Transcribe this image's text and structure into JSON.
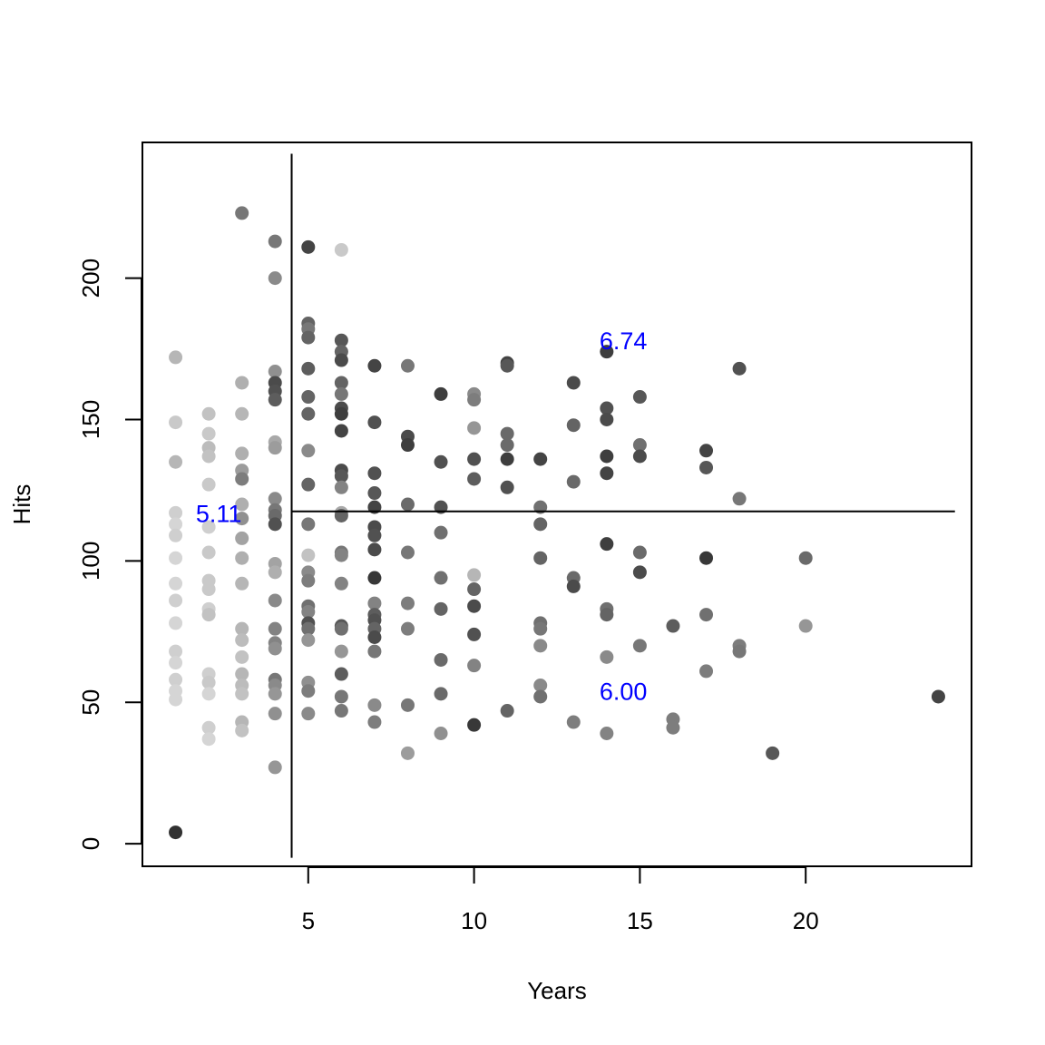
{
  "chart_data": {
    "type": "scatter",
    "title": "",
    "xlabel": "Years",
    "ylabel": "Hits",
    "xlim": [
      0,
      25
    ],
    "ylim": [
      -8,
      248
    ],
    "x_ticks": [
      5,
      10,
      15,
      20
    ],
    "y_ticks": [
      0,
      50,
      100,
      150,
      200
    ],
    "grid": false,
    "legend": "none",
    "marker_color_scale": {
      "low": "#e8e8e8",
      "high": "#2b2b2b",
      "range": [
        4.5,
        7.5
      ]
    },
    "split_lines": {
      "vertical": {
        "x": 4.5,
        "y_from": -5,
        "y_to": 244
      },
      "horizontal": {
        "y": 117.5,
        "x_from": 4.5,
        "x_to": 24.5
      }
    },
    "region_labels": [
      {
        "text": "5.11",
        "x": 2.3,
        "y": 117,
        "color": "#0000ff"
      },
      {
        "text": "6.74",
        "x": 14.5,
        "y": 178,
        "color": "#0000ff"
      },
      {
        "text": "6.00",
        "x": 14.5,
        "y": 54,
        "color": "#0000ff"
      }
    ],
    "points": [
      {
        "x": 1,
        "y": 172,
        "z": 5.3
      },
      {
        "x": 1,
        "y": 149,
        "z": 5.0
      },
      {
        "x": 1,
        "y": 135,
        "z": 5.3
      },
      {
        "x": 1,
        "y": 117,
        "z": 4.9
      },
      {
        "x": 1,
        "y": 113,
        "z": 4.8
      },
      {
        "x": 1,
        "y": 109,
        "z": 4.9
      },
      {
        "x": 1,
        "y": 101,
        "z": 4.8
      },
      {
        "x": 1,
        "y": 92,
        "z": 4.8
      },
      {
        "x": 1,
        "y": 86,
        "z": 4.9
      },
      {
        "x": 1,
        "y": 78,
        "z": 4.8
      },
      {
        "x": 1,
        "y": 68,
        "z": 4.9
      },
      {
        "x": 1,
        "y": 64,
        "z": 4.8
      },
      {
        "x": 1,
        "y": 58,
        "z": 4.9
      },
      {
        "x": 1,
        "y": 54,
        "z": 4.8
      },
      {
        "x": 1,
        "y": 51,
        "z": 4.8
      },
      {
        "x": 1,
        "y": 4,
        "z": 7.4
      },
      {
        "x": 2,
        "y": 152,
        "z": 5.1
      },
      {
        "x": 2,
        "y": 145,
        "z": 5.0
      },
      {
        "x": 2,
        "y": 140,
        "z": 5.2
      },
      {
        "x": 2,
        "y": 137,
        "z": 5.1
      },
      {
        "x": 2,
        "y": 127,
        "z": 5.0
      },
      {
        "x": 2,
        "y": 112,
        "z": 4.9
      },
      {
        "x": 2,
        "y": 103,
        "z": 5.0
      },
      {
        "x": 2,
        "y": 93,
        "z": 5.0
      },
      {
        "x": 2,
        "y": 90,
        "z": 5.0
      },
      {
        "x": 2,
        "y": 83,
        "z": 4.9
      },
      {
        "x": 2,
        "y": 81,
        "z": 5.1
      },
      {
        "x": 2,
        "y": 60,
        "z": 4.9
      },
      {
        "x": 2,
        "y": 57,
        "z": 5.0
      },
      {
        "x": 2,
        "y": 53,
        "z": 4.8
      },
      {
        "x": 2,
        "y": 41,
        "z": 4.9
      },
      {
        "x": 2,
        "y": 37,
        "z": 4.8
      },
      {
        "x": 3,
        "y": 223,
        "z": 6.3
      },
      {
        "x": 3,
        "y": 163,
        "z": 5.4
      },
      {
        "x": 3,
        "y": 152,
        "z": 5.3
      },
      {
        "x": 3,
        "y": 138,
        "z": 5.4
      },
      {
        "x": 3,
        "y": 132,
        "z": 5.7
      },
      {
        "x": 3,
        "y": 129,
        "z": 6.2
      },
      {
        "x": 3,
        "y": 120,
        "z": 5.4
      },
      {
        "x": 3,
        "y": 115,
        "z": 5.9
      },
      {
        "x": 3,
        "y": 108,
        "z": 5.6
      },
      {
        "x": 3,
        "y": 101,
        "z": 5.4
      },
      {
        "x": 3,
        "y": 92,
        "z": 5.3
      },
      {
        "x": 3,
        "y": 76,
        "z": 5.3
      },
      {
        "x": 3,
        "y": 72,
        "z": 5.2
      },
      {
        "x": 3,
        "y": 66,
        "z": 5.1
      },
      {
        "x": 3,
        "y": 60,
        "z": 5.3
      },
      {
        "x": 3,
        "y": 56,
        "z": 5.2
      },
      {
        "x": 3,
        "y": 53,
        "z": 5.1
      },
      {
        "x": 3,
        "y": 43,
        "z": 5.3
      },
      {
        "x": 3,
        "y": 40,
        "z": 5.1
      },
      {
        "x": 4,
        "y": 213,
        "z": 6.3
      },
      {
        "x": 4,
        "y": 200,
        "z": 6.0
      },
      {
        "x": 4,
        "y": 167,
        "z": 5.9
      },
      {
        "x": 4,
        "y": 163,
        "z": 7.0
      },
      {
        "x": 4,
        "y": 160,
        "z": 6.9
      },
      {
        "x": 4,
        "y": 157,
        "z": 6.7
      },
      {
        "x": 4,
        "y": 142,
        "z": 5.5
      },
      {
        "x": 4,
        "y": 140,
        "z": 5.7
      },
      {
        "x": 4,
        "y": 122,
        "z": 6.0
      },
      {
        "x": 4,
        "y": 118,
        "z": 6.3
      },
      {
        "x": 4,
        "y": 116,
        "z": 6.5
      },
      {
        "x": 4,
        "y": 113,
        "z": 6.9
      },
      {
        "x": 4,
        "y": 99,
        "z": 5.6
      },
      {
        "x": 4,
        "y": 96,
        "z": 5.4
      },
      {
        "x": 4,
        "y": 86,
        "z": 6.0
      },
      {
        "x": 4,
        "y": 76,
        "z": 6.1
      },
      {
        "x": 4,
        "y": 71,
        "z": 6.1
      },
      {
        "x": 4,
        "y": 69,
        "z": 5.9
      },
      {
        "x": 4,
        "y": 58,
        "z": 6.3
      },
      {
        "x": 4,
        "y": 56,
        "z": 6.0
      },
      {
        "x": 4,
        "y": 53,
        "z": 5.8
      },
      {
        "x": 4,
        "y": 46,
        "z": 5.9
      },
      {
        "x": 4,
        "y": 27,
        "z": 5.8
      },
      {
        "x": 5,
        "y": 211,
        "z": 7.1
      },
      {
        "x": 5,
        "y": 184,
        "z": 6.6
      },
      {
        "x": 5,
        "y": 182,
        "z": 6.3
      },
      {
        "x": 5,
        "y": 179,
        "z": 6.6
      },
      {
        "x": 5,
        "y": 168,
        "z": 6.7
      },
      {
        "x": 5,
        "y": 158,
        "z": 6.6
      },
      {
        "x": 5,
        "y": 152,
        "z": 6.6
      },
      {
        "x": 5,
        "y": 139,
        "z": 6.0
      },
      {
        "x": 5,
        "y": 127,
        "z": 6.6
      },
      {
        "x": 5,
        "y": 113,
        "z": 6.3
      },
      {
        "x": 5,
        "y": 102,
        "z": 5.1
      },
      {
        "x": 5,
        "y": 96,
        "z": 6.0
      },
      {
        "x": 5,
        "y": 93,
        "z": 6.2
      },
      {
        "x": 5,
        "y": 84,
        "z": 6.4
      },
      {
        "x": 5,
        "y": 82,
        "z": 6.1
      },
      {
        "x": 5,
        "y": 78,
        "z": 6.9
      },
      {
        "x": 5,
        "y": 76,
        "z": 6.4
      },
      {
        "x": 5,
        "y": 72,
        "z": 5.8
      },
      {
        "x": 5,
        "y": 57,
        "z": 5.9
      },
      {
        "x": 5,
        "y": 54,
        "z": 6.2
      },
      {
        "x": 5,
        "y": 46,
        "z": 6.0
      },
      {
        "x": 6,
        "y": 210,
        "z": 5.0
      },
      {
        "x": 6,
        "y": 178,
        "z": 6.8
      },
      {
        "x": 6,
        "y": 174,
        "z": 6.6
      },
      {
        "x": 6,
        "y": 171,
        "z": 7.0
      },
      {
        "x": 6,
        "y": 163,
        "z": 6.6
      },
      {
        "x": 6,
        "y": 159,
        "z": 6.3
      },
      {
        "x": 6,
        "y": 154,
        "z": 7.0
      },
      {
        "x": 6,
        "y": 152,
        "z": 7.2
      },
      {
        "x": 6,
        "y": 146,
        "z": 7.1
      },
      {
        "x": 6,
        "y": 132,
        "z": 7.0
      },
      {
        "x": 6,
        "y": 130,
        "z": 6.8
      },
      {
        "x": 6,
        "y": 126,
        "z": 6.1
      },
      {
        "x": 6,
        "y": 117,
        "z": 5.5
      },
      {
        "x": 6,
        "y": 116,
        "z": 6.6
      },
      {
        "x": 6,
        "y": 103,
        "z": 6.3
      },
      {
        "x": 6,
        "y": 102,
        "z": 6.1
      },
      {
        "x": 6,
        "y": 92,
        "z": 6.1
      },
      {
        "x": 6,
        "y": 77,
        "z": 6.8
      },
      {
        "x": 6,
        "y": 76,
        "z": 6.4
      },
      {
        "x": 6,
        "y": 68,
        "z": 5.8
      },
      {
        "x": 6,
        "y": 60,
        "z": 6.7
      },
      {
        "x": 6,
        "y": 52,
        "z": 6.3
      },
      {
        "x": 6,
        "y": 47,
        "z": 6.3
      },
      {
        "x": 7,
        "y": 169,
        "z": 7.1
      },
      {
        "x": 7,
        "y": 149,
        "z": 6.9
      },
      {
        "x": 7,
        "y": 131,
        "z": 6.9
      },
      {
        "x": 7,
        "y": 124,
        "z": 6.8
      },
      {
        "x": 7,
        "y": 119,
        "z": 7.1
      },
      {
        "x": 7,
        "y": 112,
        "z": 7.0
      },
      {
        "x": 7,
        "y": 109,
        "z": 6.9
      },
      {
        "x": 7,
        "y": 104,
        "z": 7.0
      },
      {
        "x": 7,
        "y": 94,
        "z": 7.3
      },
      {
        "x": 7,
        "y": 85,
        "z": 6.1
      },
      {
        "x": 7,
        "y": 81,
        "z": 6.7
      },
      {
        "x": 7,
        "y": 79,
        "z": 6.9
      },
      {
        "x": 7,
        "y": 76,
        "z": 6.6
      },
      {
        "x": 7,
        "y": 73,
        "z": 7.0
      },
      {
        "x": 7,
        "y": 68,
        "z": 6.3
      },
      {
        "x": 7,
        "y": 49,
        "z": 6.0
      },
      {
        "x": 7,
        "y": 43,
        "z": 6.2
      },
      {
        "x": 8,
        "y": 169,
        "z": 6.3
      },
      {
        "x": 8,
        "y": 144,
        "z": 7.0
      },
      {
        "x": 8,
        "y": 141,
        "z": 7.2
      },
      {
        "x": 8,
        "y": 120,
        "z": 6.5
      },
      {
        "x": 8,
        "y": 103,
        "z": 6.3
      },
      {
        "x": 8,
        "y": 85,
        "z": 6.2
      },
      {
        "x": 8,
        "y": 76,
        "z": 6.2
      },
      {
        "x": 8,
        "y": 49,
        "z": 6.3
      },
      {
        "x": 8,
        "y": 32,
        "z": 5.7
      },
      {
        "x": 9,
        "y": 159,
        "z": 7.2
      },
      {
        "x": 9,
        "y": 135,
        "z": 6.9
      },
      {
        "x": 9,
        "y": 119,
        "z": 6.9
      },
      {
        "x": 9,
        "y": 110,
        "z": 6.4
      },
      {
        "x": 9,
        "y": 94,
        "z": 6.4
      },
      {
        "x": 9,
        "y": 83,
        "z": 6.6
      },
      {
        "x": 9,
        "y": 65,
        "z": 6.5
      },
      {
        "x": 9,
        "y": 53,
        "z": 6.5
      },
      {
        "x": 9,
        "y": 39,
        "z": 5.9
      },
      {
        "x": 10,
        "y": 159,
        "z": 6.0
      },
      {
        "x": 10,
        "y": 157,
        "z": 6.2
      },
      {
        "x": 10,
        "y": 147,
        "z": 5.8
      },
      {
        "x": 10,
        "y": 136,
        "z": 6.9
      },
      {
        "x": 10,
        "y": 129,
        "z": 6.7
      },
      {
        "x": 10,
        "y": 95,
        "z": 5.3
      },
      {
        "x": 10,
        "y": 90,
        "z": 6.6
      },
      {
        "x": 10,
        "y": 84,
        "z": 7.0
      },
      {
        "x": 10,
        "y": 74,
        "z": 6.9
      },
      {
        "x": 10,
        "y": 63,
        "z": 6.1
      },
      {
        "x": 10,
        "y": 42,
        "z": 7.3
      },
      {
        "x": 11,
        "y": 170,
        "z": 7.1
      },
      {
        "x": 11,
        "y": 169,
        "z": 6.8
      },
      {
        "x": 11,
        "y": 145,
        "z": 6.5
      },
      {
        "x": 11,
        "y": 141,
        "z": 6.5
      },
      {
        "x": 11,
        "y": 136,
        "z": 7.2
      },
      {
        "x": 11,
        "y": 126,
        "z": 6.9
      },
      {
        "x": 11,
        "y": 47,
        "z": 6.6
      },
      {
        "x": 12,
        "y": 136,
        "z": 7.1
      },
      {
        "x": 12,
        "y": 119,
        "z": 6.4
      },
      {
        "x": 12,
        "y": 113,
        "z": 6.6
      },
      {
        "x": 12,
        "y": 101,
        "z": 6.6
      },
      {
        "x": 12,
        "y": 78,
        "z": 6.4
      },
      {
        "x": 12,
        "y": 76,
        "z": 6.3
      },
      {
        "x": 12,
        "y": 70,
        "z": 6.0
      },
      {
        "x": 12,
        "y": 56,
        "z": 6.0
      },
      {
        "x": 12,
        "y": 52,
        "z": 6.4
      },
      {
        "x": 13,
        "y": 163,
        "z": 7.0
      },
      {
        "x": 13,
        "y": 148,
        "z": 6.6
      },
      {
        "x": 13,
        "y": 128,
        "z": 6.5
      },
      {
        "x": 13,
        "y": 94,
        "z": 6.5
      },
      {
        "x": 13,
        "y": 91,
        "z": 7.0
      },
      {
        "x": 13,
        "y": 43,
        "z": 6.2
      },
      {
        "x": 14,
        "y": 174,
        "z": 7.2
      },
      {
        "x": 14,
        "y": 154,
        "z": 6.9
      },
      {
        "x": 14,
        "y": 150,
        "z": 7.0
      },
      {
        "x": 14,
        "y": 137,
        "z": 7.2
      },
      {
        "x": 14,
        "y": 131,
        "z": 7.1
      },
      {
        "x": 14,
        "y": 106,
        "z": 7.2
      },
      {
        "x": 14,
        "y": 83,
        "z": 6.4
      },
      {
        "x": 14,
        "y": 81,
        "z": 6.6
      },
      {
        "x": 14,
        "y": 66,
        "z": 6.0
      },
      {
        "x": 14,
        "y": 39,
        "z": 6.1
      },
      {
        "x": 15,
        "y": 158,
        "z": 6.8
      },
      {
        "x": 15,
        "y": 141,
        "z": 6.4
      },
      {
        "x": 15,
        "y": 137,
        "z": 7.0
      },
      {
        "x": 15,
        "y": 103,
        "z": 6.5
      },
      {
        "x": 15,
        "y": 96,
        "z": 7.0
      },
      {
        "x": 15,
        "y": 70,
        "z": 6.3
      },
      {
        "x": 16,
        "y": 77,
        "z": 6.7
      },
      {
        "x": 16,
        "y": 44,
        "z": 6.2
      },
      {
        "x": 16,
        "y": 41,
        "z": 6.2
      },
      {
        "x": 17,
        "y": 139,
        "z": 7.1
      },
      {
        "x": 17,
        "y": 133,
        "z": 6.8
      },
      {
        "x": 17,
        "y": 101,
        "z": 7.3
      },
      {
        "x": 17,
        "y": 81,
        "z": 6.4
      },
      {
        "x": 17,
        "y": 61,
        "z": 6.2
      },
      {
        "x": 18,
        "y": 168,
        "z": 6.9
      },
      {
        "x": 18,
        "y": 122,
        "z": 6.3
      },
      {
        "x": 18,
        "y": 70,
        "z": 6.2
      },
      {
        "x": 18,
        "y": 68,
        "z": 6.3
      },
      {
        "x": 19,
        "y": 32,
        "z": 6.8
      },
      {
        "x": 20,
        "y": 101,
        "z": 6.5
      },
      {
        "x": 20,
        "y": 77,
        "z": 5.8
      },
      {
        "x": 24,
        "y": 52,
        "z": 7.1
      }
    ]
  }
}
